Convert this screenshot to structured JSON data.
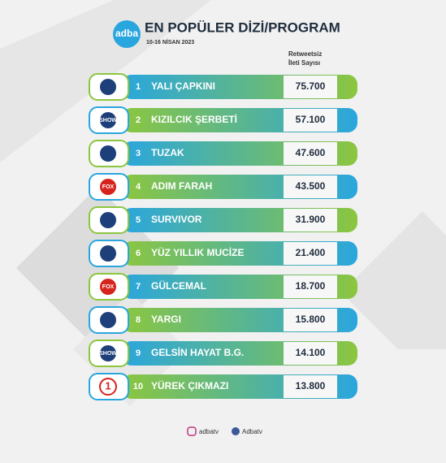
{
  "header": {
    "logo": "adba",
    "title": "EN POPÜLER DİZİ/PROGRAM",
    "subtitle": "10-16 NİSAN 2023",
    "column_title": [
      "Retweetsiz",
      "İleti Sayısı"
    ]
  },
  "rows": [
    {
      "rank": 1,
      "program": "YALI ÇAPKINI",
      "value": "75.700",
      "channel": null
    },
    {
      "rank": 2,
      "program": "KIZILCIK ŞERBETİ",
      "value": "57.100",
      "channel": "SHOW"
    },
    {
      "rank": 3,
      "program": "TUZAK",
      "value": "47.600",
      "channel": null
    },
    {
      "rank": 4,
      "program": "ADIM FARAH",
      "value": "43.500",
      "channel": "FOX"
    },
    {
      "rank": 5,
      "program": "SURVIVOR",
      "value": "31.900",
      "channel": null
    },
    {
      "rank": 6,
      "program": "YÜZ YILLIK MUCİZE",
      "value": "21.400",
      "channel": null
    },
    {
      "rank": 7,
      "program": "GÜLCEMAL",
      "value": "18.700",
      "channel": "FOX"
    },
    {
      "rank": 8,
      "program": "YARGI",
      "value": "15.800",
      "channel": null
    },
    {
      "rank": 9,
      "program": "GELSİN HAYAT B.G.",
      "value": "14.100",
      "channel": "SHOW"
    },
    {
      "rank": 10,
      "program": "YÜREK ÇIKMAZI",
      "value": "13.800",
      "channel": "1"
    }
  ],
  "footer": {
    "instagram": "adbatv",
    "facebook": "Adbatv"
  }
}
